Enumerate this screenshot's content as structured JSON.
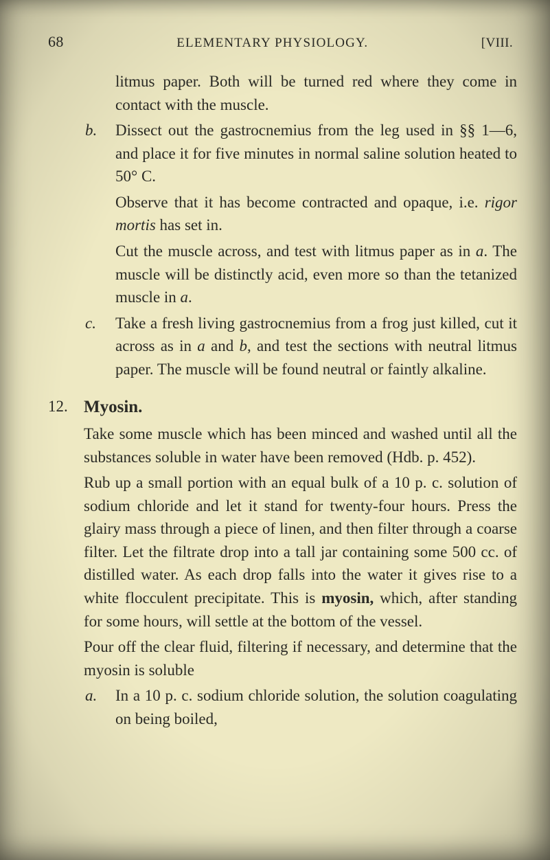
{
  "page": {
    "number": "68",
    "runningTitle": "ELEMENTARY PHYSIOLOGY.",
    "chapterRef": "[VIII."
  },
  "blocks": {
    "intro": {
      "p1": "litmus paper. Both will be turned red where they come in contact with the muscle."
    },
    "b": {
      "letter": "b.",
      "p1": "Dissect out the gastrocnemius from the leg used in §§ 1—6, and place it for five minutes in normal saline solution heated to 50° C.",
      "p2a": "Observe that it has become contracted and opaque, i.e. ",
      "p2_i": "rigor mortis",
      "p2b": " has set in.",
      "p3a": "Cut the muscle across, and test with litmus paper as in ",
      "p3_i": "a",
      "p3b": ". The muscle will be distinctly acid, even more so than the tetanized muscle in ",
      "p3_i2": "a",
      "p3c": "."
    },
    "c": {
      "letter": "c.",
      "p1a": "Take a fresh living gastrocnemius from a frog just killed, cut it across as in ",
      "p1_i1": "a",
      "p1b": " and ",
      "p1_i2": "b",
      "p1c": ", and test the sections with neutral litmus paper. The muscle will be found neutral or faintly alkaline."
    },
    "sec12": {
      "number": "12.",
      "heading": "Myosin.",
      "p1": "Take some muscle which has been minced and washed until all the substances soluble in water have been removed (Hdb. p. 452).",
      "p2a": "Rub up a small portion with an equal bulk of a 10 p. c. solution of sodium chloride and let it stand for twenty-four hours. Press the glairy mass through a piece of linen, and then filter through a coarse filter. Let the filtrate drop into a tall jar contain­ing some 500 cc. of distilled water. As each drop falls into the water it gives rise to a white flocculent precipitate. This is ",
      "p2_b": "myosin,",
      "p2b": " which, after standing for some hours, will settle at the bottom of the vessel.",
      "p3": "Pour off the clear fluid, filtering if necessary, and determine that the myosin is soluble",
      "a_letter": "a.",
      "a_p": "In a 10 p. c. sodium chloride solution, the solu­tion coagulating on being boiled,"
    }
  }
}
